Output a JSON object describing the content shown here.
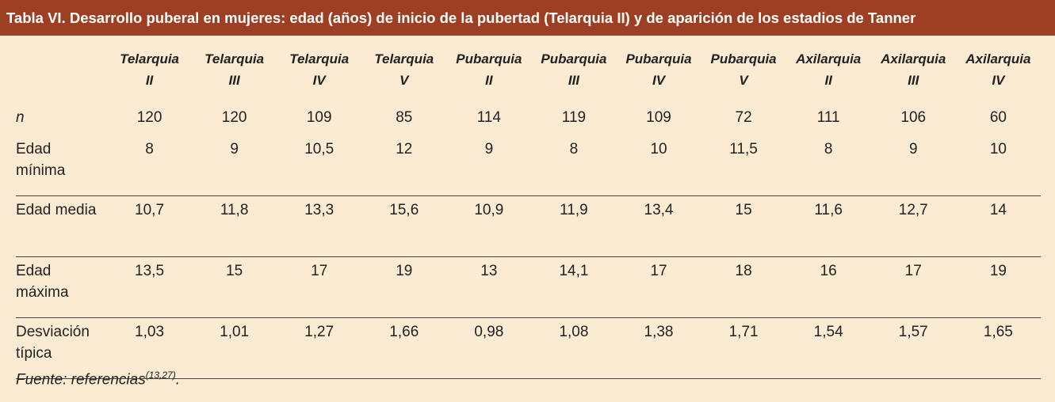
{
  "title": "Tabla VI.  Desarrollo puberal en mujeres: edad (años) de inicio de la pubertad (Telarquia II) y de aparición de los estadios de Tanner",
  "table": {
    "columns": [
      [
        "Telarquia",
        "II"
      ],
      [
        "Telarquia",
        "III"
      ],
      [
        "Telarquia",
        "IV"
      ],
      [
        "Telarquia",
        "V"
      ],
      [
        "Pubarquia",
        "II"
      ],
      [
        "Pubarquia",
        "III"
      ],
      [
        "Pubarquia",
        "IV"
      ],
      [
        "Pubarquia",
        "V"
      ],
      [
        "Axilarquia",
        "II"
      ],
      [
        "Axilarquia",
        "III"
      ],
      [
        "Axilarquia",
        "IV"
      ]
    ],
    "rows": [
      {
        "label": "n",
        "values": [
          "120",
          "120",
          "109",
          "85",
          "114",
          "119",
          "109",
          "72",
          "111",
          "106",
          "60"
        ]
      },
      {
        "label": "Edad mínima",
        "values": [
          "8",
          "9",
          "10,5",
          "12",
          "9",
          "8",
          "10",
          "11,5",
          "8",
          "9",
          "10"
        ]
      },
      {
        "label": "Edad media",
        "values": [
          "10,7",
          "11,8",
          "13,3",
          "15,6",
          "10,9",
          "11,9",
          "13,4",
          "15",
          "11,6",
          "12,7",
          "14"
        ]
      },
      {
        "label": "Edad máxima",
        "values": [
          "13,5",
          "15",
          "17",
          "19",
          "13",
          "14,1",
          "17",
          "18",
          "16",
          "17",
          "19"
        ]
      },
      {
        "label": "Desviación típica",
        "values": [
          "1,03",
          "1,01",
          "1,27",
          "1,66",
          "0,98",
          "1,08",
          "1,38",
          "1,71",
          "1,54",
          "1,57",
          "1,65"
        ]
      }
    ]
  },
  "footnote": {
    "text": "Fuente: referencias",
    "reference": "(13,27)",
    "end": "."
  }
}
